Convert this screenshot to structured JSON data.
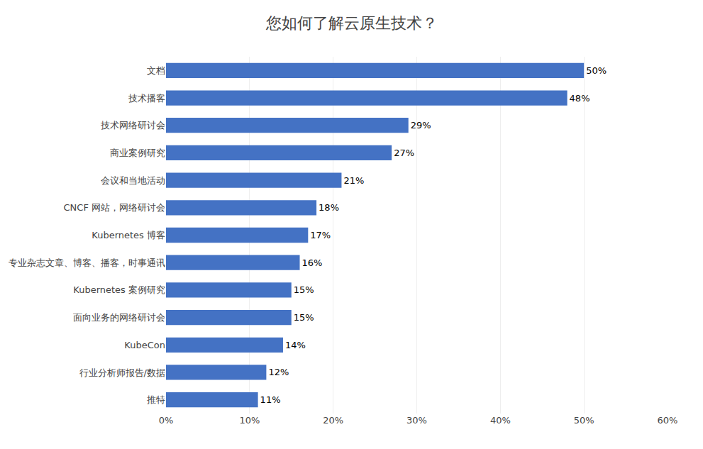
{
  "chart_data": {
    "type": "bar",
    "orientation": "horizontal",
    "title": "您如何了解云原生技术？",
    "categories": [
      "推特",
      "行业分析师报告/数据",
      "KubeCon",
      "面向业务的网络研讨会",
      "Kubernetes 案例研究",
      "专业杂志文章、博客、播客，时事通讯",
      "Kubernetes 博客",
      "CNCF 网站，网络研讨会",
      "会议和当地活动",
      "商业案例研究",
      "技术网络研讨会",
      "技术播客",
      "文档"
    ],
    "values": [
      11,
      12,
      14,
      15,
      15,
      16,
      17,
      18,
      21,
      27,
      29,
      48,
      50
    ],
    "value_labels": [
      "11%",
      "12%",
      "14%",
      "15%",
      "15%",
      "16%",
      "17%",
      "18%",
      "21%",
      "27%",
      "29%",
      "48%",
      "50%"
    ],
    "data_labels": true,
    "color": "#4472C4",
    "xlim": [
      0,
      60
    ],
    "xticks": [
      {
        "value": 0,
        "label": "0%"
      },
      {
        "value": 10,
        "label": "10%"
      },
      {
        "value": 20,
        "label": "20%"
      },
      {
        "value": 30,
        "label": "30%"
      },
      {
        "value": 40,
        "label": "40%"
      },
      {
        "value": 50,
        "label": "50%"
      },
      {
        "value": 60,
        "label": "60%"
      }
    ],
    "grid": true
  }
}
